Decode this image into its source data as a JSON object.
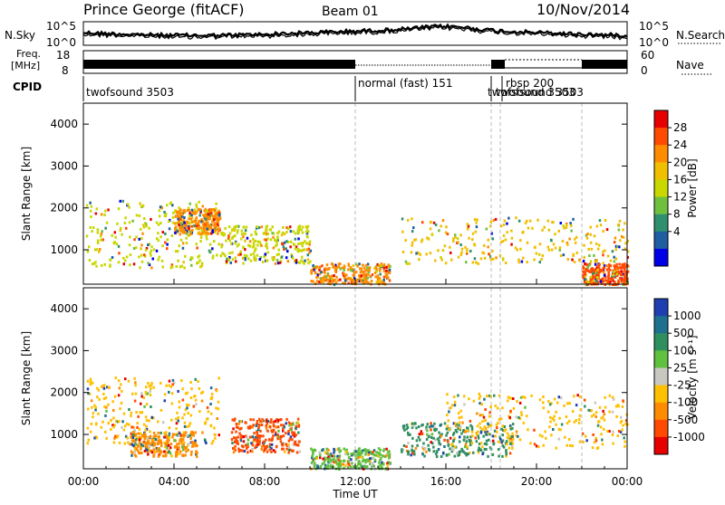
{
  "header": {
    "station": "Prince George (fitACF)",
    "beam": "Beam 01",
    "date": "10/Nov/2014"
  },
  "noise_panel": {
    "left_label": "N.Sky",
    "right_label": "N.Search",
    "left_ticks": [
      "10^5",
      "10^0"
    ],
    "right_ticks": [
      "10^5",
      "10^0"
    ]
  },
  "freq_panel": {
    "left_label_1": "Freq.",
    "left_label_2": "[MHz]",
    "right_label": "Nave",
    "left_ticks": [
      "18",
      "8"
    ],
    "right_ticks": [
      "60",
      "0"
    ]
  },
  "cpid": {
    "label": "CPID",
    "entries": [
      {
        "text": "twofsound 3503",
        "start_hr": 0.0
      },
      {
        "text": "normal (fast) 151",
        "start_hr": 12.0
      },
      {
        "text": "twofsound 3503",
        "start_hr": 18.0
      },
      {
        "text": "rbsp 200",
        "start_hr": 18.5
      },
      {
        "text": "twofsound 3503",
        "start_hr": 18.6
      }
    ]
  },
  "power_colorbar": {
    "label": "Power [dB]",
    "ticks": [
      "28",
      "24",
      "20",
      "16",
      "12",
      "8",
      "4"
    ],
    "colors": [
      "#e60000",
      "#ff4a00",
      "#ff8c00",
      "#f0c000",
      "#c8d800",
      "#70c040",
      "#2f8f6f",
      "#1f5ea0",
      "#0000e6"
    ]
  },
  "velocity_colorbar": {
    "label": "Velocity [m s⁻¹]",
    "ticks": [
      "1000",
      "500",
      "100",
      "25",
      "-25",
      "-100",
      "-500",
      "-1000"
    ],
    "colors": [
      "#1f3fb0",
      "#1f6f8f",
      "#2f8f5f",
      "#60c040",
      "#c8c8c0",
      "#ffc000",
      "#ff8c00",
      "#ff4a00",
      "#e60000"
    ]
  },
  "chart_data": [
    {
      "type": "heatmap",
      "title": "",
      "xlabel": "Time UT",
      "ylabel": "Slant Range [km]",
      "xlim": [
        0,
        24
      ],
      "ylim": [
        180,
        4500
      ],
      "yticks": [
        "1000",
        "2000",
        "3000",
        "4000"
      ],
      "xticks": [
        "00:00",
        "04:00",
        "08:00",
        "12:00",
        "16:00",
        "20:00",
        "00:00"
      ],
      "mode_change_hours": [
        12.0,
        18.0,
        18.4,
        22.0
      ],
      "scatter_regions": [
        {
          "t": [
            0.1,
            6.0
          ],
          "r": [
            600,
            2200
          ],
          "value": "16"
        },
        {
          "t": [
            4.0,
            6.0
          ],
          "r": [
            1400,
            2000
          ],
          "value": "24"
        },
        {
          "t": [
            6.0,
            10.0
          ],
          "r": [
            700,
            1600
          ],
          "value": "16"
        },
        {
          "t": [
            10.0,
            13.5
          ],
          "r": [
            200,
            700
          ],
          "value": "24"
        },
        {
          "t": [
            14.0,
            24.0
          ],
          "r": [
            700,
            1800
          ],
          "value": "20"
        },
        {
          "t": [
            22.0,
            24.0
          ],
          "r": [
            200,
            700
          ],
          "value": "28"
        }
      ]
    },
    {
      "type": "heatmap",
      "title": "",
      "xlabel": "Time UT",
      "ylabel": "Slant Range [km]",
      "xlim": [
        0,
        24
      ],
      "ylim": [
        180,
        4500
      ],
      "yticks": [
        "1000",
        "2000",
        "3000",
        "4000"
      ],
      "xticks": [
        "00:00",
        "04:00",
        "08:00",
        "12:00",
        "16:00",
        "20:00",
        "00:00"
      ],
      "scatter_regions": [
        {
          "t": [
            0.1,
            6.0
          ],
          "r": [
            800,
            2400
          ],
          "value": "-25"
        },
        {
          "t": [
            2.0,
            5.0
          ],
          "r": [
            500,
            1100
          ],
          "value": "-100"
        },
        {
          "t": [
            6.5,
            9.5
          ],
          "r": [
            600,
            1400
          ],
          "value": "-500"
        },
        {
          "t": [
            10.0,
            13.5
          ],
          "r": [
            200,
            700
          ],
          "value": "100"
        },
        {
          "t": [
            14.0,
            19.0
          ],
          "r": [
            500,
            1300
          ],
          "value": "500"
        },
        {
          "t": [
            16.0,
            24.0
          ],
          "r": [
            700,
            2000
          ],
          "value": "-25"
        }
      ]
    }
  ]
}
